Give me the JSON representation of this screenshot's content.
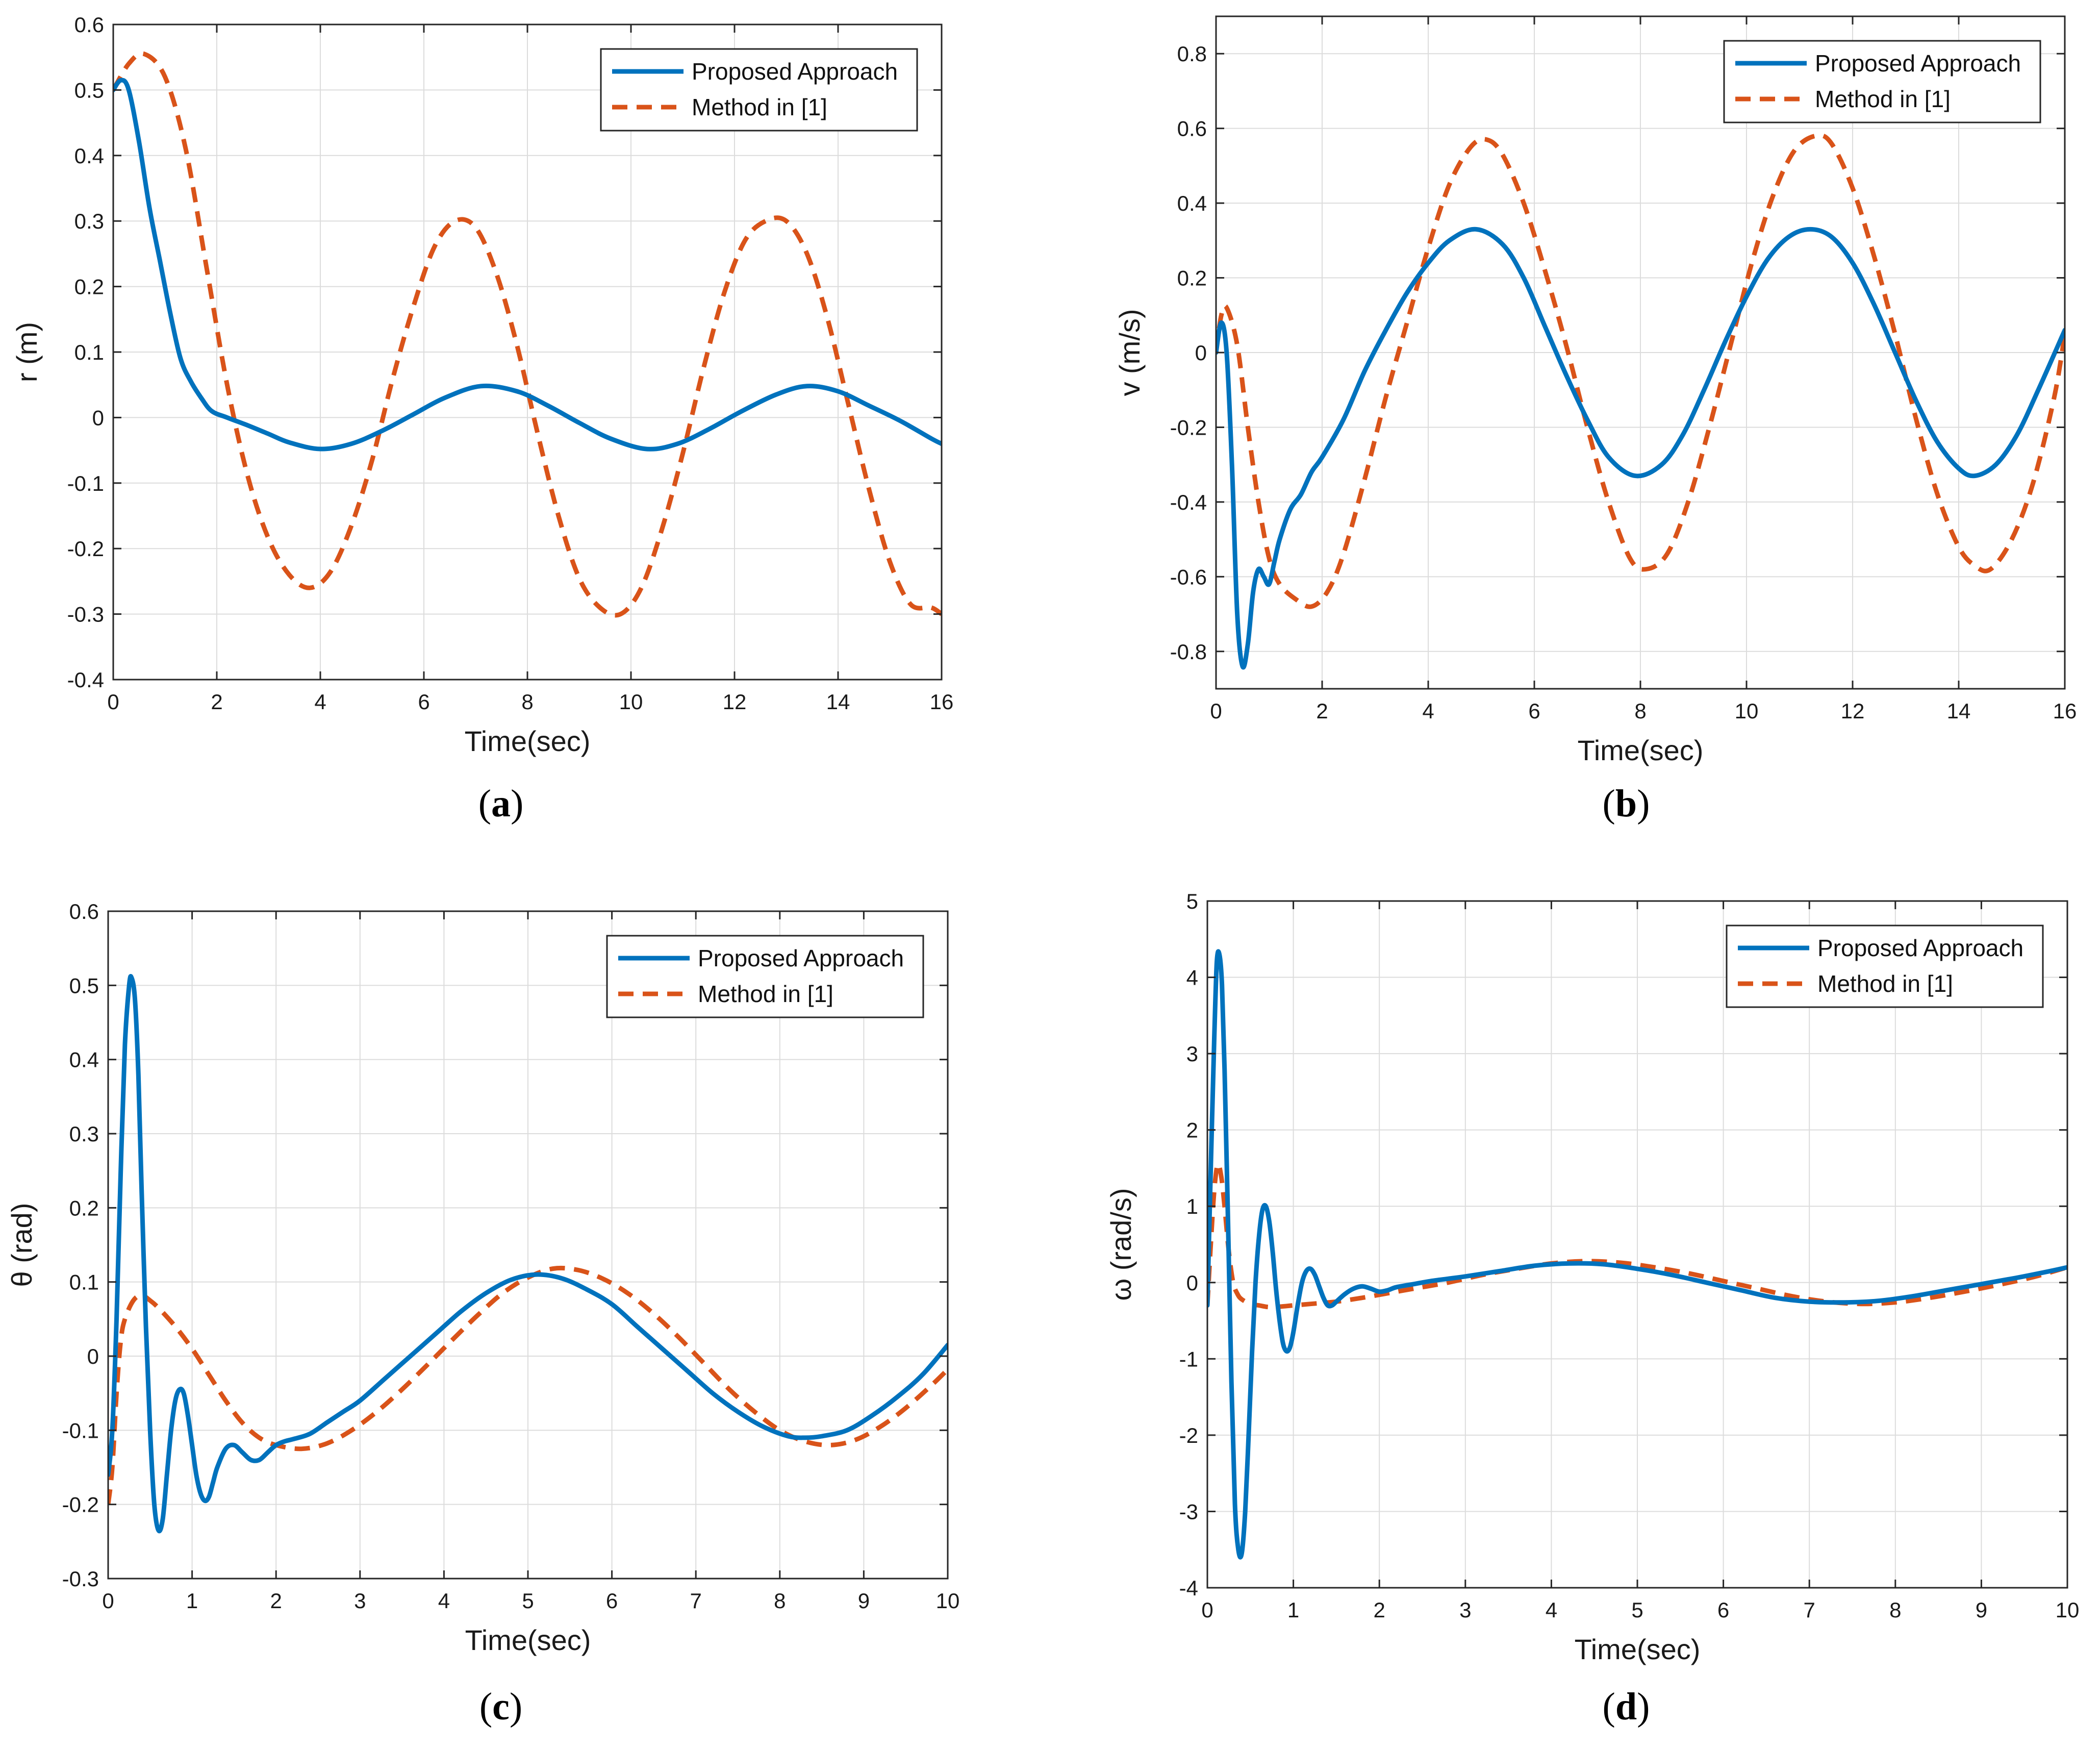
{
  "chart_data": [
    {
      "id": "a",
      "type": "line",
      "caption": "a",
      "xlabel": "Time(sec)",
      "ylabel": "r (m)",
      "xlim": [
        0,
        16
      ],
      "ylim": [
        -0.4,
        0.6
      ],
      "xticks": [
        0,
        2,
        4,
        6,
        8,
        10,
        12,
        14,
        16
      ],
      "yticks": [
        -0.4,
        -0.3,
        -0.2,
        -0.1,
        0,
        0.1,
        0.2,
        0.3,
        0.4,
        0.5,
        0.6
      ],
      "xtick_labels": [
        "0",
        "2",
        "4",
        "6",
        "8",
        "10",
        "12",
        "14",
        "16"
      ],
      "ytick_labels": [
        "-0.4",
        "-0.3",
        "-0.2",
        "-0.1",
        "0",
        "0.1",
        "0.2",
        "0.3",
        "0.4",
        "0.5",
        "0.6"
      ],
      "grid": true,
      "legend": "top-right",
      "series": [
        {
          "name": "Proposed Approach",
          "color": "#0072BD",
          "style": "solid",
          "x": [
            0,
            0.15,
            0.3,
            0.5,
            0.7,
            0.9,
            1.1,
            1.3,
            1.5,
            1.7,
            1.9,
            2.2,
            2.6,
            3.0,
            3.4,
            4.0,
            4.6,
            5.2,
            5.8,
            6.4,
            7.1,
            7.8,
            8.4,
            9.0,
            9.6,
            10.3,
            10.9,
            11.5,
            12.1,
            12.8,
            13.4,
            14.0,
            14.6,
            15.2,
            15.8,
            16.0
          ],
          "y": [
            0.5,
            0.515,
            0.5,
            0.42,
            0.32,
            0.24,
            0.16,
            0.09,
            0.055,
            0.03,
            0.01,
            0.0,
            -0.012,
            -0.025,
            -0.038,
            -0.048,
            -0.04,
            -0.02,
            0.005,
            0.03,
            0.048,
            0.04,
            0.018,
            -0.008,
            -0.032,
            -0.048,
            -0.04,
            -0.018,
            0.008,
            0.035,
            0.048,
            0.04,
            0.018,
            -0.005,
            -0.032,
            -0.04
          ]
        },
        {
          "name": "Method in [1]",
          "color": "#D95319",
          "style": "dashed",
          "x": [
            0,
            0.3,
            0.6,
            1.0,
            1.4,
            1.8,
            2.2,
            2.6,
            3.0,
            3.4,
            3.8,
            4.2,
            4.6,
            5.0,
            5.4,
            5.8,
            6.2,
            6.6,
            7.0,
            7.4,
            7.8,
            8.2,
            8.6,
            9.0,
            9.4,
            9.8,
            10.2,
            10.6,
            11.0,
            11.4,
            11.8,
            12.2,
            12.6,
            13.0,
            13.4,
            13.8,
            14.2,
            14.6,
            15.0,
            15.4,
            15.8,
            16.0
          ],
          "y": [
            0.5,
            0.54,
            0.555,
            0.52,
            0.41,
            0.23,
            0.05,
            -0.09,
            -0.185,
            -0.24,
            -0.26,
            -0.235,
            -0.165,
            -0.065,
            0.06,
            0.17,
            0.26,
            0.3,
            0.29,
            0.22,
            0.11,
            -0.025,
            -0.15,
            -0.245,
            -0.29,
            -0.3,
            -0.26,
            -0.17,
            -0.055,
            0.075,
            0.19,
            0.27,
            0.3,
            0.3,
            0.25,
            0.15,
            0.02,
            -0.11,
            -0.22,
            -0.285,
            -0.29,
            -0.3
          ]
        }
      ]
    },
    {
      "id": "b",
      "type": "line",
      "caption": "b",
      "xlabel": "Time(sec)",
      "ylabel": "v (m/s)",
      "xlim": [
        0,
        16
      ],
      "ylim": [
        -0.9,
        0.9
      ],
      "xticks": [
        0,
        2,
        4,
        6,
        8,
        10,
        12,
        14,
        16
      ],
      "yticks": [
        -0.8,
        -0.6,
        -0.4,
        -0.2,
        0,
        0.2,
        0.4,
        0.6,
        0.8
      ],
      "xtick_labels": [
        "0",
        "2",
        "4",
        "6",
        "8",
        "10",
        "12",
        "14",
        "16"
      ],
      "ytick_labels": [
        "-0.8",
        "-0.6",
        "-0.4",
        "-0.2",
        "0",
        "0.2",
        "0.4",
        "0.6",
        "0.8"
      ],
      "grid": true,
      "legend": "top-right",
      "series": [
        {
          "name": "Proposed Approach",
          "color": "#0072BD",
          "style": "solid",
          "x": [
            0,
            0.1,
            0.2,
            0.3,
            0.4,
            0.5,
            0.6,
            0.7,
            0.8,
            0.9,
            1.0,
            1.1,
            1.2,
            1.4,
            1.6,
            1.8,
            2.0,
            2.4,
            2.8,
            3.2,
            3.6,
            4.0,
            4.4,
            4.9,
            5.4,
            5.8,
            6.2,
            6.6,
            7.0,
            7.4,
            7.9,
            8.4,
            8.8,
            9.2,
            9.6,
            10.0,
            10.4,
            10.8,
            11.2,
            11.6,
            12.0,
            12.4,
            12.8,
            13.2,
            13.6,
            14.0,
            14.3,
            14.7,
            15.1,
            15.5,
            16.0
          ],
          "y": [
            0.0,
            0.08,
            0.0,
            -0.3,
            -0.7,
            -0.84,
            -0.78,
            -0.64,
            -0.58,
            -0.6,
            -0.62,
            -0.56,
            -0.5,
            -0.42,
            -0.38,
            -0.32,
            -0.28,
            -0.18,
            -0.05,
            0.06,
            0.16,
            0.24,
            0.3,
            0.33,
            0.29,
            0.2,
            0.07,
            -0.06,
            -0.18,
            -0.28,
            -0.33,
            -0.3,
            -0.22,
            -0.1,
            0.03,
            0.15,
            0.25,
            0.31,
            0.33,
            0.31,
            0.24,
            0.13,
            0.0,
            -0.13,
            -0.24,
            -0.31,
            -0.33,
            -0.3,
            -0.22,
            -0.1,
            0.06
          ]
        },
        {
          "name": "Method in [1]",
          "color": "#D95319",
          "style": "dashed",
          "x": [
            0,
            0.1,
            0.2,
            0.4,
            0.6,
            0.8,
            1.0,
            1.2,
            1.5,
            1.8,
            2.1,
            2.4,
            2.8,
            3.2,
            3.6,
            4.0,
            4.4,
            4.8,
            5.1,
            5.4,
            5.8,
            6.2,
            6.6,
            7.0,
            7.4,
            7.8,
            8.1,
            8.5,
            8.9,
            9.3,
            9.7,
            10.1,
            10.5,
            10.9,
            11.3,
            11.6,
            12.0,
            12.4,
            12.8,
            13.2,
            13.6,
            14.0,
            14.3,
            14.6,
            15.0,
            15.4,
            15.8,
            16.0
          ],
          "y": [
            0.0,
            0.1,
            0.12,
            0.02,
            -0.2,
            -0.4,
            -0.55,
            -0.62,
            -0.66,
            -0.68,
            -0.64,
            -0.54,
            -0.34,
            -0.12,
            0.08,
            0.28,
            0.45,
            0.55,
            0.57,
            0.53,
            0.4,
            0.22,
            0.02,
            -0.2,
            -0.4,
            -0.55,
            -0.58,
            -0.54,
            -0.4,
            -0.2,
            0.02,
            0.24,
            0.42,
            0.54,
            0.58,
            0.56,
            0.44,
            0.26,
            0.05,
            -0.18,
            -0.38,
            -0.52,
            -0.57,
            -0.58,
            -0.5,
            -0.35,
            -0.12,
            0.05
          ]
        }
      ]
    },
    {
      "id": "c",
      "type": "line",
      "caption": "c",
      "xlabel": "Time(sec)",
      "ylabel": "θ (rad)",
      "xlim": [
        0,
        10
      ],
      "ylim": [
        -0.3,
        0.6
      ],
      "xticks": [
        0,
        1,
        2,
        3,
        4,
        5,
        6,
        7,
        8,
        9,
        10
      ],
      "yticks": [
        -0.3,
        -0.2,
        -0.1,
        0,
        0.1,
        0.2,
        0.3,
        0.4,
        0.5,
        0.6
      ],
      "xtick_labels": [
        "0",
        "1",
        "2",
        "3",
        "4",
        "5",
        "6",
        "7",
        "8",
        "9",
        "10"
      ],
      "ytick_labels": [
        "-0.3",
        "-0.2",
        "-0.1",
        "0",
        "0.1",
        "0.2",
        "0.3",
        "0.4",
        "0.5",
        "0.6"
      ],
      "grid": true,
      "legend": "top-right",
      "series": [
        {
          "name": "Proposed Approach",
          "color": "#0072BD",
          "style": "solid",
          "x": [
            0,
            0.05,
            0.1,
            0.15,
            0.2,
            0.25,
            0.28,
            0.32,
            0.36,
            0.4,
            0.45,
            0.5,
            0.55,
            0.6,
            0.65,
            0.7,
            0.75,
            0.8,
            0.85,
            0.9,
            0.95,
            1.0,
            1.05,
            1.1,
            1.15,
            1.2,
            1.25,
            1.3,
            1.4,
            1.5,
            1.6,
            1.7,
            1.8,
            1.9,
            2.0,
            2.1,
            2.2,
            2.4,
            2.6,
            2.8,
            3.0,
            3.3,
            3.6,
            3.9,
            4.2,
            4.5,
            4.8,
            5.1,
            5.4,
            5.7,
            6.0,
            6.3,
            6.6,
            6.9,
            7.2,
            7.5,
            7.8,
            8.1,
            8.3,
            8.5,
            8.8,
            9.1,
            9.4,
            9.7,
            10.0
          ],
          "y": [
            -0.16,
            -0.1,
            0.05,
            0.25,
            0.42,
            0.5,
            0.51,
            0.48,
            0.38,
            0.22,
            0.04,
            -0.1,
            -0.2,
            -0.235,
            -0.22,
            -0.16,
            -0.1,
            -0.06,
            -0.045,
            -0.05,
            -0.08,
            -0.12,
            -0.16,
            -0.185,
            -0.195,
            -0.19,
            -0.17,
            -0.15,
            -0.125,
            -0.12,
            -0.13,
            -0.14,
            -0.14,
            -0.13,
            -0.12,
            -0.115,
            -0.112,
            -0.105,
            -0.09,
            -0.075,
            -0.06,
            -0.03,
            0.0,
            0.03,
            0.06,
            0.085,
            0.103,
            0.11,
            0.105,
            0.09,
            0.07,
            0.04,
            0.01,
            -0.02,
            -0.05,
            -0.075,
            -0.095,
            -0.108,
            -0.11,
            -0.108,
            -0.1,
            -0.08,
            -0.055,
            -0.025,
            0.015
          ]
        },
        {
          "name": "Method in [1]",
          "color": "#D95319",
          "style": "dashed",
          "x": [
            0,
            0.05,
            0.1,
            0.15,
            0.2,
            0.3,
            0.4,
            0.5,
            0.6,
            0.8,
            1.0,
            1.2,
            1.4,
            1.6,
            1.8,
            2.0,
            2.3,
            2.6,
            2.9,
            3.2,
            3.5,
            3.8,
            4.1,
            4.4,
            4.7,
            5.0,
            5.3,
            5.6,
            5.9,
            6.2,
            6.5,
            6.8,
            7.1,
            7.4,
            7.7,
            8.0,
            8.3,
            8.6,
            8.9,
            9.2,
            9.5,
            9.8,
            10.0
          ],
          "y": [
            -0.2,
            -0.15,
            -0.05,
            0.02,
            0.05,
            0.075,
            0.082,
            0.075,
            0.065,
            0.04,
            0.01,
            -0.025,
            -0.06,
            -0.09,
            -0.11,
            -0.12,
            -0.125,
            -0.118,
            -0.1,
            -0.075,
            -0.045,
            -0.012,
            0.022,
            0.055,
            0.085,
            0.106,
            0.118,
            0.116,
            0.104,
            0.084,
            0.057,
            0.025,
            -0.01,
            -0.045,
            -0.075,
            -0.1,
            -0.115,
            -0.12,
            -0.113,
            -0.095,
            -0.07,
            -0.04,
            -0.018
          ]
        }
      ]
    },
    {
      "id": "d",
      "type": "line",
      "caption": "d",
      "xlabel": "Time(sec)",
      "ylabel": "ω (rad/s)",
      "xlim": [
        0,
        10
      ],
      "ylim": [
        -4,
        5
      ],
      "xticks": [
        0,
        1,
        2,
        3,
        4,
        5,
        6,
        7,
        8,
        9,
        10
      ],
      "yticks": [
        -4,
        -3,
        -2,
        -1,
        0,
        1,
        2,
        3,
        4,
        5
      ],
      "xtick_labels": [
        "0",
        "1",
        "2",
        "3",
        "4",
        "5",
        "6",
        "7",
        "8",
        "9",
        "10"
      ],
      "ytick_labels": [
        "-4",
        "-3",
        "-2",
        "-1",
        "0",
        "1",
        "2",
        "3",
        "4",
        "5"
      ],
      "grid": true,
      "legend": "top-right",
      "series": [
        {
          "name": "Proposed Approach",
          "color": "#0072BD",
          "style": "solid",
          "x": [
            0,
            0.04,
            0.08,
            0.11,
            0.14,
            0.17,
            0.2,
            0.24,
            0.28,
            0.32,
            0.36,
            0.4,
            0.44,
            0.48,
            0.52,
            0.56,
            0.6,
            0.64,
            0.68,
            0.72,
            0.76,
            0.8,
            0.84,
            0.88,
            0.92,
            0.96,
            1.0,
            1.05,
            1.1,
            1.15,
            1.2,
            1.25,
            1.3,
            1.35,
            1.4,
            1.45,
            1.5,
            1.6,
            1.7,
            1.8,
            1.9,
            2.0,
            2.1,
            2.2,
            2.4,
            2.6,
            2.8,
            3.0,
            3.4,
            3.8,
            4.2,
            4.6,
            5.0,
            5.4,
            5.8,
            6.2,
            6.6,
            7.0,
            7.4,
            7.8,
            8.2,
            8.6,
            9.0,
            9.4,
            9.8,
            10.0
          ],
          "y": [
            -0.3,
            1.5,
            3.2,
            4.2,
            4.3,
            3.9,
            2.8,
            0.8,
            -1.3,
            -2.9,
            -3.5,
            -3.55,
            -3.0,
            -2.0,
            -0.9,
            0.0,
            0.6,
            0.95,
            1.0,
            0.8,
            0.4,
            -0.1,
            -0.5,
            -0.8,
            -0.9,
            -0.85,
            -0.65,
            -0.3,
            0.0,
            0.15,
            0.18,
            0.1,
            -0.05,
            -0.2,
            -0.3,
            -0.3,
            -0.25,
            -0.15,
            -0.08,
            -0.05,
            -0.08,
            -0.12,
            -0.1,
            -0.06,
            -0.02,
            0.02,
            0.05,
            0.08,
            0.15,
            0.22,
            0.25,
            0.24,
            0.18,
            0.1,
            0.0,
            -0.1,
            -0.2,
            -0.25,
            -0.26,
            -0.24,
            -0.18,
            -0.1,
            -0.02,
            0.06,
            0.15,
            0.2
          ]
        },
        {
          "name": "Method in [1]",
          "color": "#D95319",
          "style": "dashed",
          "x": [
            0,
            0.04,
            0.08,
            0.12,
            0.16,
            0.2,
            0.25,
            0.3,
            0.35,
            0.4,
            0.5,
            0.6,
            0.7,
            0.8,
            1.0,
            1.2,
            1.5,
            1.8,
            2.1,
            2.4,
            2.8,
            3.2,
            3.6,
            4.0,
            4.4,
            4.8,
            5.2,
            5.6,
            6.0,
            6.4,
            6.8,
            7.2,
            7.6,
            8.0,
            8.4,
            8.8,
            9.2,
            9.6,
            10.0
          ],
          "y": [
            -0.3,
            0.5,
            1.2,
            1.55,
            1.4,
            1.0,
            0.4,
            0.0,
            -0.15,
            -0.22,
            -0.28,
            -0.3,
            -0.32,
            -0.32,
            -0.3,
            -0.28,
            -0.25,
            -0.2,
            -0.14,
            -0.08,
            0.0,
            0.1,
            0.18,
            0.25,
            0.28,
            0.26,
            0.2,
            0.12,
            0.02,
            -0.08,
            -0.18,
            -0.25,
            -0.28,
            -0.26,
            -0.2,
            -0.12,
            -0.03,
            0.07,
            0.2
          ]
        }
      ]
    }
  ]
}
